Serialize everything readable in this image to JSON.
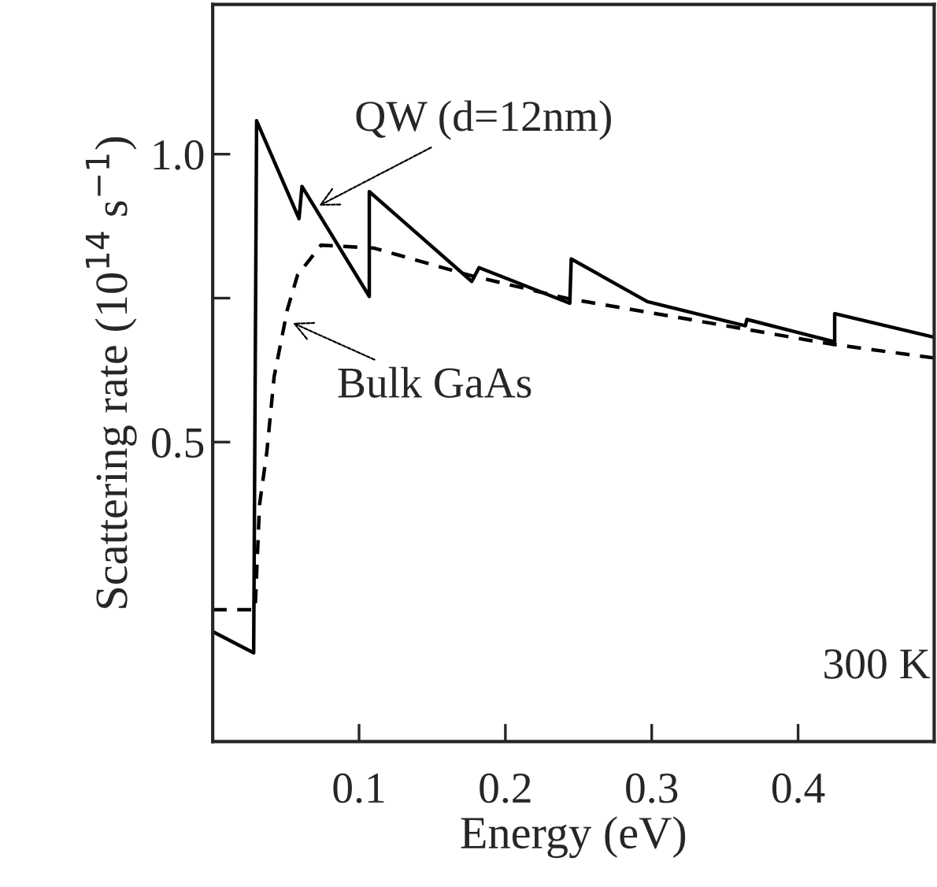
{
  "chart_data": {
    "type": "line",
    "xlabel": "Energy (eV)",
    "ylabel": "Scattering rate (10$^{14}$ s$^{−1}$)",
    "xlim": [
      0,
      0.493
    ],
    "ylim": [
      -0.02,
      1.26
    ],
    "xticks": [
      0.1,
      0.2,
      0.3,
      0.4
    ],
    "yticks": [
      0.5,
      {
        "value": 0.75,
        "label": null
      },
      {
        "value": 1.0,
        "label": "1.0"
      }
    ],
    "grid": false,
    "marker": "none",
    "series": [
      {
        "color": "#000000",
        "line_style": "solid",
        "x": [
          0,
          0.028,
          0.03,
          0.059,
          0.061,
          0.107,
          0.107,
          0.177,
          0.182,
          0.244,
          0.245,
          0.297,
          0.364,
          0.365,
          0.425,
          0.425,
          0.493
        ],
        "values": [
          0.171,
          0.134,
          1.058,
          0.888,
          0.944,
          0.753,
          0.935,
          0.779,
          0.803,
          0.741,
          0.818,
          0.744,
          0.702,
          0.713,
          0.674,
          0.723,
          0.682
        ]
      },
      {
        "color": "#000000",
        "line_style": "dashed",
        "x": [
          0,
          0.029,
          0.032,
          0.037,
          0.042,
          0.051,
          0.058,
          0.074,
          0.11,
          0.175,
          0.243,
          0.319,
          0.423,
          0.493
        ],
        "values": [
          0.209,
          0.209,
          0.391,
          0.483,
          0.614,
          0.73,
          0.79,
          0.842,
          0.837,
          0.79,
          0.749,
          0.716,
          0.67,
          0.646
        ]
      }
    ],
    "annotations": [
      {
        "text": "QW (d=12nm)",
        "x": 0.07,
        "y": 0.907
      },
      {
        "text": "Bulk GaAs",
        "x": 0.052,
        "y": 0.71
      },
      "300 K"
    ]
  }
}
